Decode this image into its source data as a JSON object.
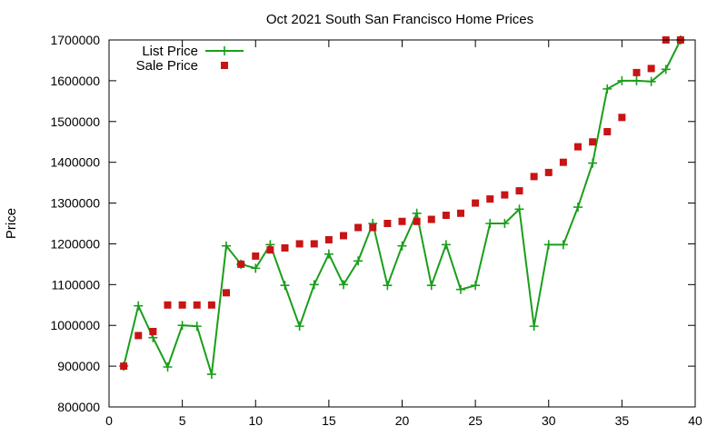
{
  "chart_data": {
    "type": "line",
    "title": "Oct 2021 South San Francisco Home Prices",
    "xlabel": "",
    "ylabel": "Price",
    "xlim": [
      0,
      40
    ],
    "ylim": [
      800000,
      1700000
    ],
    "xticks": [
      0,
      5,
      10,
      15,
      20,
      25,
      30,
      35,
      40
    ],
    "yticks": [
      800000,
      900000,
      1000000,
      1100000,
      1200000,
      1300000,
      1400000,
      1500000,
      1600000,
      1700000
    ],
    "grid": false,
    "legend_position": "top-left",
    "x": [
      1,
      2,
      3,
      4,
      5,
      6,
      7,
      8,
      9,
      10,
      11,
      12,
      13,
      14,
      15,
      16,
      17,
      18,
      19,
      20,
      21,
      22,
      23,
      24,
      25,
      26,
      27,
      28,
      29,
      30,
      31,
      32,
      33,
      34,
      35,
      36,
      37,
      38,
      39
    ],
    "series": [
      {
        "name": "List Price",
        "style": "lines-crosses",
        "color": "#1a9e1a",
        "values": [
          900000,
          1048000,
          970000,
          898000,
          1000000,
          998000,
          880000,
          1195000,
          1150000,
          1140000,
          1198000,
          1098000,
          998000,
          1100000,
          1175000,
          1100000,
          1158000,
          1250000,
          1098000,
          1195000,
          1275000,
          1098000,
          1198000,
          1088000,
          1098000,
          1250000,
          1250000,
          1285000,
          998000,
          1198000,
          1198000,
          1290000,
          1398000,
          1580000,
          1600000,
          1600000,
          1598000,
          1628000,
          1700000
        ]
      },
      {
        "name": "Sale Price",
        "style": "squares",
        "color": "#c81414",
        "values": [
          900000,
          975000,
          985000,
          1050000,
          1050000,
          1050000,
          1050000,
          1080000,
          1150000,
          1170000,
          1185000,
          1190000,
          1200000,
          1200000,
          1210000,
          1220000,
          1240000,
          1240000,
          1250000,
          1255000,
          1255000,
          1260000,
          1270000,
          1275000,
          1300000,
          1310000,
          1320000,
          1330000,
          1365000,
          1375000,
          1400000,
          1438000,
          1450000,
          1475000,
          1510000,
          1620000,
          1630000,
          1700000,
          1700000
        ]
      }
    ]
  }
}
